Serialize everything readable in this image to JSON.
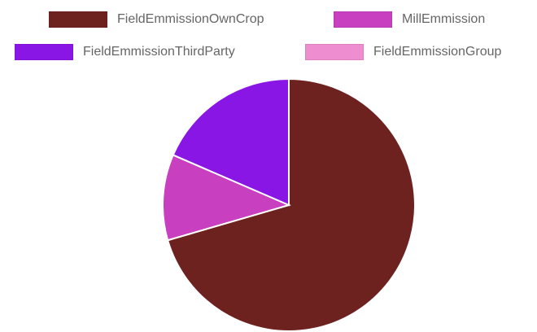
{
  "chart_data": {
    "type": "pie",
    "start_angle_deg": 0,
    "direction": "clockwise",
    "legend_position": "top",
    "slices": [
      {
        "label": "FieldEmmissionOwnCrop",
        "value": 70.5,
        "color": "#6e2220"
      },
      {
        "label": "MillEmmission",
        "value": 11.0,
        "color": "#c83fc0"
      },
      {
        "label": "FieldEmmissionThirdParty",
        "value": 18.5,
        "color": "#8a16e6"
      },
      {
        "label": "FieldEmmissionGroup",
        "value": 0,
        "color": "#ef8dd1"
      }
    ]
  }
}
